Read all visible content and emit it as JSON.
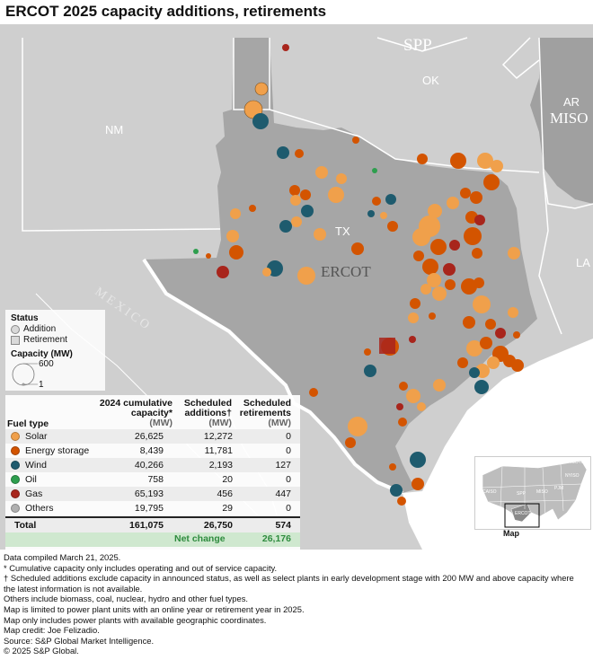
{
  "title": "ERCOT 2025 capacity additions, retirements",
  "map": {
    "region_labels": {
      "spp": "SPP",
      "miso": "MISO",
      "ercot": "ERCOT"
    },
    "state_labels": {
      "nm": "NM",
      "ok": "OK",
      "ar": "AR",
      "la": "LA",
      "tx": "TX"
    },
    "country_label": "MEXICO",
    "colors": {
      "background": "#c9c9c9",
      "ercot": "#a6a6a6",
      "miso": "#b3b3b3",
      "borders": "#ffffff"
    }
  },
  "legend": {
    "status_title": "Status",
    "addition_label": "Addition",
    "retirement_label": "Retirement",
    "capacity_title": "Capacity (MW)",
    "size_max": "600",
    "size_min": "1"
  },
  "table": {
    "fuel_type_header": "Fuel type",
    "col1_header": "2024 cumulative capacity*",
    "col1_unit": "(MW)",
    "col2_header": "Scheduled additions†",
    "col2_unit": "(MW)",
    "col3_header": "Scheduled retirements",
    "col3_unit": "(MW)",
    "rows": [
      {
        "fuel": "Solar",
        "color": "#f0a04b",
        "cumulative": "26,625",
        "additions": "12,272",
        "retirements": "0"
      },
      {
        "fuel": "Energy storage",
        "color": "#d35400",
        "cumulative": "8,439",
        "additions": "11,781",
        "retirements": "0"
      },
      {
        "fuel": "Wind",
        "color": "#1e5b6e",
        "cumulative": "40,266",
        "additions": "2,193",
        "retirements": "127"
      },
      {
        "fuel": "Oil",
        "color": "#2e9e4e",
        "cumulative": "758",
        "additions": "20",
        "retirements": "0"
      },
      {
        "fuel": "Gas",
        "color": "#a8251c",
        "cumulative": "65,193",
        "additions": "456",
        "retirements": "447"
      },
      {
        "fuel": "Others",
        "color": "#b0b0b0",
        "cumulative": "19,795",
        "additions": "29",
        "retirements": "0"
      }
    ],
    "total": {
      "label": "Total",
      "cumulative": "161,075",
      "additions": "26,750",
      "retirements": "574"
    },
    "net_change": {
      "label": "Net change",
      "value": "26,176"
    }
  },
  "inset": {
    "label": "Map",
    "region_labels": [
      "ISO-NE",
      "NYISO",
      "PJM",
      "MISO",
      "SPP",
      "CAISO",
      "ERCOT"
    ]
  },
  "notes": [
    "Data compiled March 21, 2025.",
    "* Cumulative capacity only includes operating and out of service capacity.",
    "† Scheduled additions exclude capacity in announced status, as well as select plants in early development stage with 200 MW and above capacity where the latest information is not available.",
    "Others include biomass, coal, nuclear, hydro and other fuel types.",
    "Map is limited to power plant units with an online year or retirement year in 2025.",
    "Map only includes power plants with available geographic coordinates.",
    "Map credit: Joe Felizadio.",
    "Source: S&P Global Market Intelligence.",
    "© 2025 S&P Global."
  ]
}
